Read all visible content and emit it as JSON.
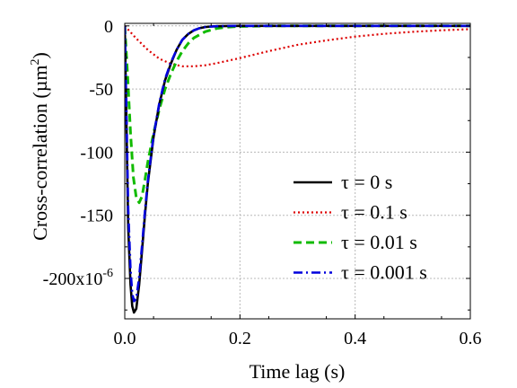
{
  "chart_data": {
    "type": "line",
    "title": "",
    "xlabel": "Time lag (s)",
    "ylabel": "Cross-correlation (µm",
    "ylabel_sup": "2",
    "ylabel_close": ")",
    "xlim": [
      0,
      0.6
    ],
    "ylim": [
      -0.000232,
      2e-06
    ],
    "x_ticks": [
      {
        "value": 0.0,
        "label": "0.0"
      },
      {
        "value": 0.2,
        "label": "0.2"
      },
      {
        "value": 0.4,
        "label": "0.4"
      },
      {
        "value": 0.6,
        "label": "0.6"
      }
    ],
    "y_ticks": [
      {
        "value": 0,
        "label": "0"
      },
      {
        "value": -5e-05,
        "label": "-50"
      },
      {
        "value": -0.0001,
        "label": "-100"
      },
      {
        "value": -0.00015,
        "label": "-150"
      },
      {
        "value": -0.0002,
        "label": "-200x10",
        "sup": "-6"
      }
    ],
    "grid": true,
    "legend_position": "lower-right",
    "series": [
      {
        "name": "τ = 0 s",
        "color": "#000000",
        "dash": "solid",
        "x": [
          0,
          0.003,
          0.006,
          0.01,
          0.013,
          0.016,
          0.02,
          0.025,
          0.03,
          0.035,
          0.04,
          0.05,
          0.06,
          0.07,
          0.08,
          0.09,
          0.1,
          0.11,
          0.12,
          0.13,
          0.14,
          0.15,
          0.16,
          0.18,
          0.2,
          0.3,
          0.4,
          0.5,
          0.6
        ],
        "y": [
          0,
          -8e-05,
          -0.00016,
          -0.000205,
          -0.000222,
          -0.000227,
          -0.000224,
          -0.000205,
          -0.000178,
          -0.00015,
          -0.000125,
          -8.8e-05,
          -6.2e-05,
          -4.3e-05,
          -3e-05,
          -1.9e-05,
          -1.1e-05,
          -6.5e-06,
          -3.5e-06,
          -1.8e-06,
          -9e-07,
          -5e-07,
          -3e-07,
          -1e-07,
          0,
          0,
          0,
          0,
          0
        ]
      },
      {
        "name": "τ = 0.1 s",
        "color": "#dd0000",
        "dash": "dotted",
        "x": [
          0,
          0.01,
          0.02,
          0.04,
          0.06,
          0.08,
          0.1,
          0.12,
          0.14,
          0.16,
          0.18,
          0.2,
          0.25,
          0.3,
          0.35,
          0.4,
          0.45,
          0.5,
          0.55,
          0.6
        ],
        "y": [
          0,
          -5e-06,
          -1e-05,
          -1.9e-05,
          -2.6e-05,
          -3e-05,
          -3.2e-05,
          -3.2e-05,
          -3.12e-05,
          -2.95e-05,
          -2.75e-05,
          -2.55e-05,
          -2e-05,
          -1.5e-05,
          -1.15e-05,
          -8.5e-06,
          -6.3e-06,
          -4.7e-06,
          -3.5e-06,
          -2.6e-06
        ]
      },
      {
        "name": "τ = 0.01 s",
        "color": "#11bb00",
        "dash": "dashed",
        "x": [
          0,
          0.005,
          0.01,
          0.015,
          0.02,
          0.025,
          0.03,
          0.035,
          0.04,
          0.05,
          0.06,
          0.07,
          0.08,
          0.09,
          0.1,
          0.11,
          0.12,
          0.14,
          0.16,
          0.18,
          0.2,
          0.25,
          0.3,
          0.4,
          0.5,
          0.6
        ],
        "y": [
          0,
          -4e-05,
          -8.5e-05,
          -0.00012,
          -0.000136,
          -0.00014,
          -0.000135,
          -0.000122,
          -0.000108,
          -8.5e-05,
          -6.6e-05,
          -5e-05,
          -3.8e-05,
          -2.8e-05,
          -2e-05,
          -1.4e-05,
          -9.5e-06,
          -4.5e-06,
          -2e-06,
          -9e-07,
          -4e-07,
          0,
          0,
          0,
          0,
          0
        ]
      },
      {
        "name": "τ = 0.001 s",
        "color": "#0000dd",
        "dash": "dashdot",
        "x": [
          0,
          0.003,
          0.006,
          0.01,
          0.013,
          0.016,
          0.02,
          0.025,
          0.03,
          0.035,
          0.04,
          0.05,
          0.06,
          0.07,
          0.08,
          0.09,
          0.1,
          0.11,
          0.12,
          0.13,
          0.14,
          0.15,
          0.16,
          0.18,
          0.2,
          0.3,
          0.4,
          0.5,
          0.6
        ],
        "y": [
          0,
          -7e-05,
          -0.000145,
          -0.000193,
          -0.000212,
          -0.000218,
          -0.000216,
          -0.000199,
          -0.000174,
          -0.000147,
          -0.000123,
          -8.7e-05,
          -6.1e-05,
          -4.2e-05,
          -2.9e-05,
          -1.9e-05,
          -1.1e-05,
          -6.5e-06,
          -3.5e-06,
          -1.8e-06,
          -9e-07,
          -5e-07,
          -3e-07,
          -1e-07,
          0,
          0,
          0,
          0,
          0
        ]
      }
    ]
  }
}
